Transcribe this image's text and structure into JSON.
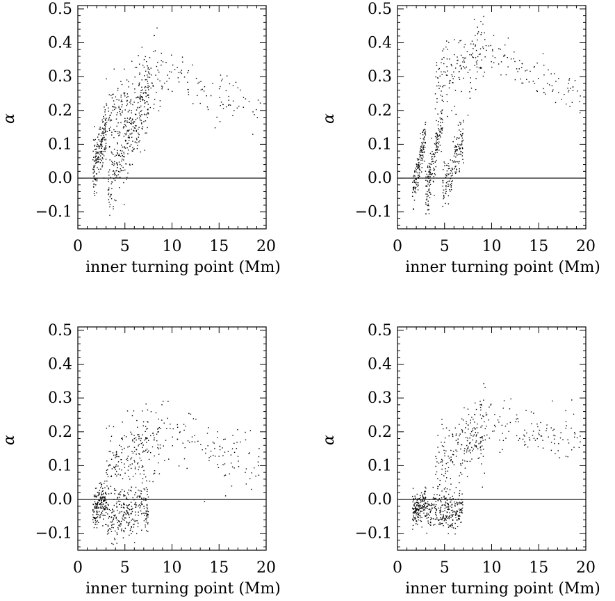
{
  "chart_data": [
    {
      "type": "scatter",
      "panel": "top-left",
      "xlabel": "inner turning point (Mm)",
      "ylabel": "α",
      "xlim": [
        0,
        20
      ],
      "ylim": [
        -0.15,
        0.51
      ],
      "xticks": [
        "0",
        "5",
        "10",
        "15",
        "20"
      ],
      "yticks": [
        "−0.1",
        "0.0",
        "0.1",
        "0.2",
        "0.3",
        "0.4",
        "0.5"
      ],
      "reference_line": {
        "y": 0.0
      },
      "clusters": [
        {
          "x_range": [
            1.6,
            3.0
          ],
          "y_base": 0.02,
          "slope": 0.09,
          "spread": 0.06,
          "n": 170
        },
        {
          "x_range": [
            3.2,
            7.5
          ],
          "y_base": -0.02,
          "slope": 0.06,
          "spread": 0.08,
          "n": 260
        },
        {
          "x_range": [
            2.5,
            9.0
          ],
          "y_base": 0.15,
          "slope": 0.025,
          "spread": 0.09,
          "n": 220
        },
        {
          "x_range": [
            9.0,
            19.5
          ],
          "y_base": 0.32,
          "slope": -0.012,
          "spread": 0.06,
          "n": 90
        }
      ]
    },
    {
      "type": "scatter",
      "panel": "top-right",
      "xlabel": "inner turning point (Mm)",
      "ylabel": "α",
      "xlim": [
        0,
        20
      ],
      "ylim": [
        -0.15,
        0.51
      ],
      "xticks": [
        "0",
        "5",
        "10",
        "15",
        "20"
      ],
      "yticks": [
        "−0.1",
        "0.0",
        "0.1",
        "0.2",
        "0.3",
        "0.4",
        "0.5"
      ],
      "reference_line": {
        "y": 0.0
      },
      "clusters": [
        {
          "x_range": [
            1.6,
            3.0
          ],
          "y_base": -0.04,
          "slope": 0.12,
          "spread": 0.05,
          "n": 150
        },
        {
          "x_range": [
            3.0,
            4.8
          ],
          "y_base": -0.06,
          "slope": 0.14,
          "spread": 0.06,
          "n": 170
        },
        {
          "x_range": [
            4.8,
            7.0
          ],
          "y_base": -0.05,
          "slope": 0.08,
          "spread": 0.06,
          "n": 150
        },
        {
          "x_range": [
            4.0,
            9.5
          ],
          "y_base": 0.28,
          "slope": 0.02,
          "spread": 0.09,
          "n": 160
        },
        {
          "x_range": [
            9.5,
            19.5
          ],
          "y_base": 0.38,
          "slope": -0.015,
          "spread": 0.05,
          "n": 90
        }
      ]
    },
    {
      "type": "scatter",
      "panel": "bottom-left",
      "xlabel": "inner turning point (Mm)",
      "ylabel": "α",
      "xlim": [
        0,
        20
      ],
      "ylim": [
        -0.15,
        0.51
      ],
      "xticks": [
        "0",
        "5",
        "10",
        "15",
        "20"
      ],
      "yticks": [
        "−0.1",
        "0.0",
        "0.1",
        "0.2",
        "0.3",
        "0.4",
        "0.5"
      ],
      "reference_line": {
        "y": 0.0
      },
      "clusters": [
        {
          "x_range": [
            1.6,
            3.0
          ],
          "y_base": -0.03,
          "slope": 0.02,
          "spread": 0.05,
          "n": 170
        },
        {
          "x_range": [
            3.0,
            7.5
          ],
          "y_base": -0.06,
          "slope": 0.01,
          "spread": 0.06,
          "n": 280
        },
        {
          "x_range": [
            3.0,
            9.0
          ],
          "y_base": 0.08,
          "slope": 0.02,
          "spread": 0.09,
          "n": 220
        },
        {
          "x_range": [
            9.0,
            19.5
          ],
          "y_base": 0.2,
          "slope": -0.01,
          "spread": 0.08,
          "n": 110
        }
      ]
    },
    {
      "type": "scatter",
      "panel": "bottom-right",
      "xlabel": "inner turning point (Mm)",
      "ylabel": "α",
      "xlim": [
        0,
        20
      ],
      "ylim": [
        -0.15,
        0.51
      ],
      "xticks": [
        "0",
        "5",
        "10",
        "15",
        "20"
      ],
      "yticks": [
        "−0.1",
        "0.0",
        "0.1",
        "0.2",
        "0.3",
        "0.4",
        "0.5"
      ],
      "reference_line": {
        "y": 0.0
      },
      "clusters": [
        {
          "x_range": [
            1.6,
            3.0
          ],
          "y_base": -0.03,
          "slope": 0.01,
          "spread": 0.04,
          "n": 170
        },
        {
          "x_range": [
            3.0,
            7.0
          ],
          "y_base": -0.03,
          "slope": 0.0,
          "spread": 0.05,
          "n": 260
        },
        {
          "x_range": [
            4.0,
            9.5
          ],
          "y_base": 0.1,
          "slope": 0.02,
          "spread": 0.09,
          "n": 220
        },
        {
          "x_range": [
            9.5,
            19.5
          ],
          "y_base": 0.22,
          "slope": -0.005,
          "spread": 0.07,
          "n": 110
        }
      ]
    }
  ]
}
